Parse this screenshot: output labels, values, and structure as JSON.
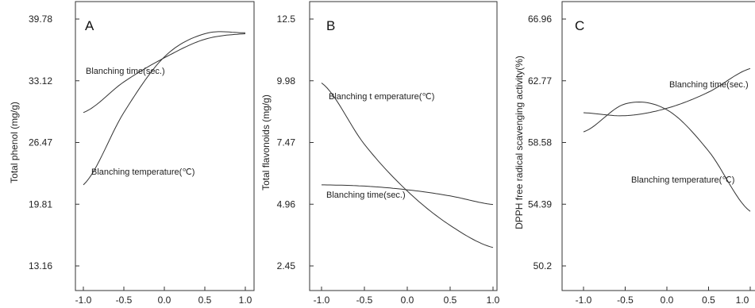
{
  "chart_data": [
    {
      "type": "line",
      "panel": "A",
      "ylabel": "Total phenol (mg/g)",
      "xlabel": "",
      "xlim": [
        -1.0,
        1.0
      ],
      "xticks": [
        "-1.0",
        "-0.5",
        "0.0",
        "0.5",
        "1.0"
      ],
      "ylim": [
        13.16,
        39.78
      ],
      "yticks": [
        "39.78",
        "33.12",
        "26.47",
        "19.81",
        "13.16"
      ],
      "x": [
        -1.0,
        -0.5,
        0.0,
        0.5,
        1.0
      ],
      "series": [
        {
          "name": "Blanching time(sec.)",
          "values": [
            29.7,
            33.0,
            35.6,
            37.6,
            38.2
          ]
        },
        {
          "name": "Blanching temperature(℃)",
          "values": [
            21.9,
            29.7,
            35.7,
            38.2,
            38.3
          ]
        }
      ]
    },
    {
      "type": "line",
      "panel": "B",
      "ylabel": "Total flavonoids (mg/g)",
      "xlabel": "",
      "xlim": [
        -1.0,
        1.0
      ],
      "xticks": [
        "-1.0",
        "-0.5",
        "0.0",
        "0.5",
        "1.0"
      ],
      "ylim": [
        2.45,
        12.5
      ],
      "yticks": [
        "12.5",
        "9.98",
        "7.47",
        "4.96",
        "2.45"
      ],
      "x": [
        -1.0,
        -0.5,
        0.0,
        0.5,
        1.0
      ],
      "series": [
        {
          "name": "Blanching t emperature(℃)",
          "values": [
            9.9,
            7.4,
            5.5,
            4.1,
            3.2
          ]
        },
        {
          "name": "Blanching time(sec.)",
          "values": [
            5.75,
            5.7,
            5.55,
            5.3,
            4.95
          ]
        }
      ]
    },
    {
      "type": "line",
      "panel": "C",
      "ylabel": "DPPH free radical scavenging  activity(%)",
      "xlabel": "",
      "xlim": [
        -1.0,
        1.0
      ],
      "xticks": [
        "-1.0",
        "-0.5",
        "0.0",
        "0.5",
        "1.0"
      ],
      "ylim": [
        50.2,
        66.96
      ],
      "yticks": [
        "66.96",
        "62.77",
        "58.58",
        "54.39",
        "50.2"
      ],
      "x": [
        -1.0,
        -0.5,
        0.0,
        0.5,
        1.0
      ],
      "series": [
        {
          "name": "Blanching time(sec.)",
          "values": [
            60.6,
            60.4,
            60.9,
            62.0,
            63.6
          ]
        },
        {
          "name": "Blanching  temperature(℃)",
          "values": [
            59.3,
            61.2,
            60.8,
            58.0,
            53.9
          ]
        }
      ]
    }
  ]
}
